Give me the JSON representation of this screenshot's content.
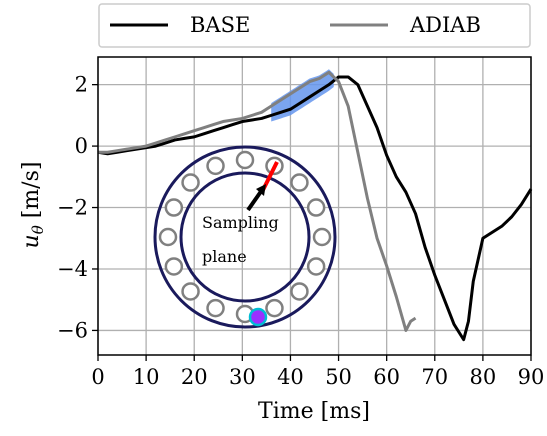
{
  "chart_data": {
    "type": "line",
    "xlabel": "Time [ms]",
    "ylabel": "u_θ [m/s]",
    "xlim": [
      0,
      90
    ],
    "ylim": [
      -6.8,
      2.9
    ],
    "xticks": [
      0,
      10,
      20,
      30,
      40,
      50,
      60,
      70,
      80,
      90
    ],
    "yticks": [
      2,
      0,
      -2,
      -4,
      -6
    ],
    "ytick_labels": [
      "2",
      "0",
      "−2",
      "−4",
      "−6"
    ],
    "grid": true,
    "legend_placement": "above plot",
    "series": [
      {
        "name": "BASE",
        "color": "#000000",
        "x": [
          0,
          2,
          4,
          6,
          8,
          10,
          12,
          14,
          16,
          18,
          20,
          22,
          24,
          26,
          28,
          30,
          32,
          34,
          36,
          38,
          40,
          42,
          44,
          46,
          48,
          50,
          52,
          54,
          56,
          58,
          60,
          62,
          64,
          66,
          68,
          70,
          72,
          74,
          76,
          77,
          78,
          80,
          82,
          84,
          86,
          88,
          90
        ],
        "y": [
          -0.2,
          -0.25,
          -0.2,
          -0.15,
          -0.1,
          -0.05,
          0.0,
          0.1,
          0.2,
          0.25,
          0.3,
          0.4,
          0.5,
          0.6,
          0.7,
          0.8,
          0.85,
          0.9,
          1.0,
          1.1,
          1.2,
          1.4,
          1.6,
          1.8,
          2.0,
          2.25,
          2.25,
          2.0,
          1.3,
          0.6,
          -0.3,
          -1.0,
          -1.5,
          -2.2,
          -3.3,
          -4.2,
          -5.0,
          -5.8,
          -6.3,
          -5.7,
          -4.4,
          -3.0,
          -2.8,
          -2.6,
          -2.3,
          -1.9,
          -1.4
        ]
      },
      {
        "name": "ADIAB",
        "color": "#808080",
        "x": [
          0,
          2,
          4,
          6,
          8,
          10,
          12,
          14,
          16,
          18,
          20,
          22,
          24,
          26,
          28,
          30,
          32,
          34,
          36,
          38,
          40,
          42,
          44,
          46,
          48,
          50,
          52,
          54,
          56,
          58,
          60,
          62,
          64,
          65,
          66
        ],
        "y": [
          -0.2,
          -0.2,
          -0.15,
          -0.1,
          -0.05,
          0.0,
          0.1,
          0.2,
          0.3,
          0.4,
          0.5,
          0.6,
          0.7,
          0.8,
          0.85,
          0.9,
          1.0,
          1.1,
          1.3,
          1.5,
          1.7,
          1.9,
          2.1,
          2.2,
          2.4,
          2.1,
          1.3,
          -0.2,
          -1.7,
          -3.0,
          -3.9,
          -4.9,
          -6.0,
          -5.7,
          -5.6
        ]
      }
    ],
    "shaded_region": {
      "x_range": [
        36,
        49
      ],
      "color": "#6495ed",
      "description_hidden": true
    },
    "inset": {
      "annotation": [
        "Sampling",
        "plane"
      ],
      "ring_color": "#1a1a5c",
      "plane_color": "#ff0000",
      "marker_color": "#9b30ff",
      "marker_outline": "#00bcd4"
    }
  }
}
